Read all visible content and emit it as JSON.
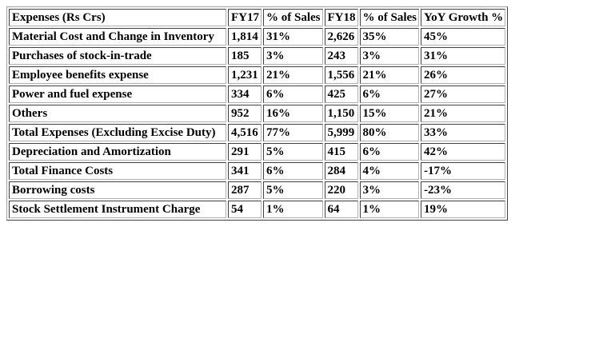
{
  "table": {
    "headers": [
      "Expenses (Rs Crs)",
      "FY17",
      "% of Sales",
      "FY18",
      "% of Sales",
      "YoY Growth %"
    ],
    "rows": [
      [
        "Material Cost and Change in Inventory",
        "1,814",
        "31%",
        "2,626",
        "35%",
        "45%"
      ],
      [
        "Purchases of stock-in-trade",
        "185",
        "3%",
        "243",
        "3%",
        "31%"
      ],
      [
        "Employee benefits expense",
        "1,231",
        "21%",
        "1,556",
        "21%",
        "26%"
      ],
      [
        "Power and fuel expense",
        "334",
        "6%",
        "425",
        "6%",
        "27%"
      ],
      [
        "Others",
        "952",
        "16%",
        "1,150",
        "15%",
        "21%"
      ],
      [
        "Total Expenses (Excluding Excise Duty)",
        "4,516",
        "77%",
        "5,999",
        "80%",
        "33%"
      ],
      [
        "Depreciation and Amortization",
        "291",
        "5%",
        "415",
        "6%",
        "42%"
      ],
      [
        "Total Finance Costs",
        "341",
        "6%",
        "284",
        "4%",
        "-17%"
      ],
      [
        "Borrowing costs",
        "287",
        "5%",
        "220",
        "3%",
        "-23%"
      ],
      [
        "Stock Settlement Instrument Charge",
        "54",
        "1%",
        "64",
        "1%",
        "19%"
      ]
    ]
  }
}
